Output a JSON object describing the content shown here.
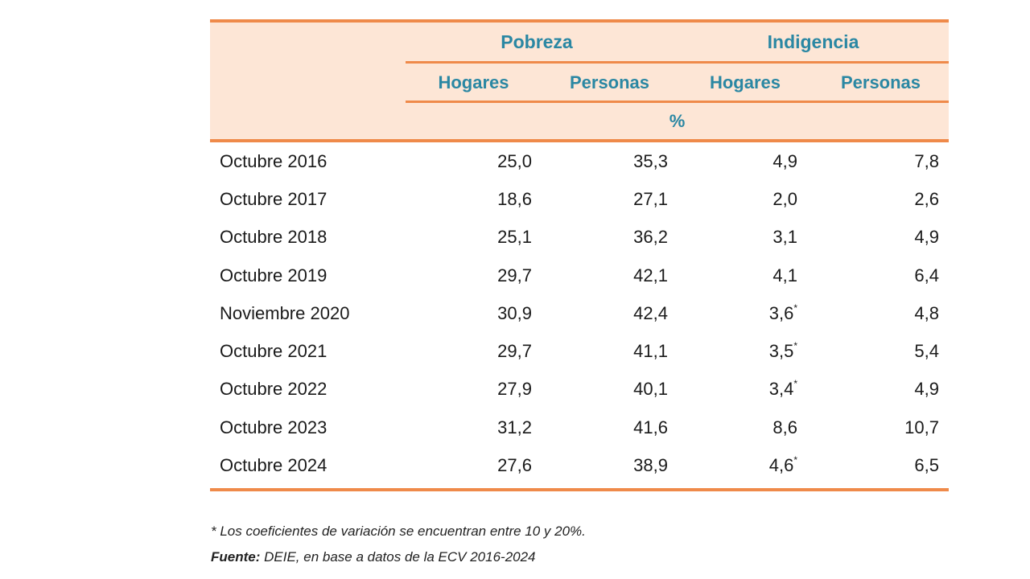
{
  "table": {
    "group_headers": [
      "Pobreza",
      "Indigencia"
    ],
    "sub_headers": [
      "Hogares",
      "Personas",
      "Hogares",
      "Personas"
    ],
    "unit": "%",
    "rows": [
      {
        "label": "Octubre 2016",
        "values": [
          "25,0",
          "35,3",
          "4,9",
          "7,8"
        ],
        "flag": ""
      },
      {
        "label": "Octubre 2017",
        "values": [
          "18,6",
          "27,1",
          "2,0",
          "2,6"
        ],
        "flag": ""
      },
      {
        "label": "Octubre 2018",
        "values": [
          "25,1",
          "36,2",
          "3,1",
          "4,9"
        ],
        "flag": ""
      },
      {
        "label": "Octubre 2019",
        "values": [
          "29,7",
          "42,1",
          "4,1",
          "6,4"
        ],
        "flag": ""
      },
      {
        "label": "Noviembre 2020",
        "values": [
          "30,9",
          "42,4",
          "3,6",
          "4,8"
        ],
        "flag": "*"
      },
      {
        "label": "Octubre 2021",
        "values": [
          "29,7",
          "41,1",
          "3,5",
          "5,4"
        ],
        "flag": "*"
      },
      {
        "label": "Octubre 2022",
        "values": [
          "27,9",
          "40,1",
          "3,4",
          "4,9"
        ],
        "flag": "*"
      },
      {
        "label": "Octubre 2023",
        "values": [
          "31,2",
          "41,6",
          "8,6",
          "10,7"
        ],
        "flag": ""
      },
      {
        "label": "Octubre 2024",
        "values": [
          "27,6",
          "38,9",
          "4,6",
          "6,5"
        ],
        "flag": "*"
      }
    ]
  },
  "notes": {
    "footnote": "* Los coeficientes de variación se encuentran entre 10 y 20%.",
    "source_label": "Fuente:",
    "source_text": " DEIE, en base a datos de la ECV 2016-2024"
  },
  "colors": {
    "accent_orange": "#ef8a4a",
    "header_fill": "#fde6d6",
    "header_text": "#2a87a3"
  }
}
